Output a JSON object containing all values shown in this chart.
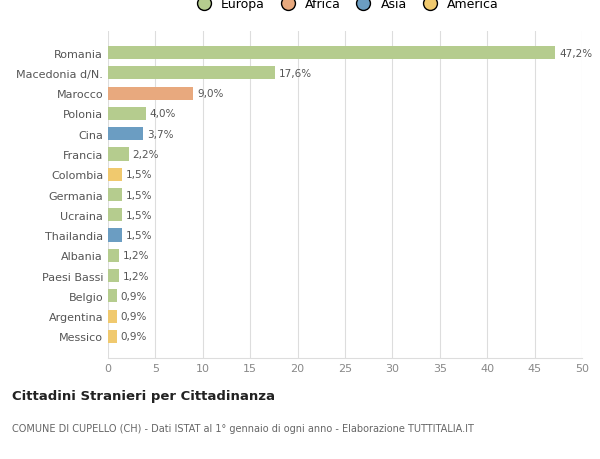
{
  "categories": [
    "Messico",
    "Argentina",
    "Belgio",
    "Paesi Bassi",
    "Albania",
    "Thailandia",
    "Ucraina",
    "Germania",
    "Colombia",
    "Francia",
    "Cina",
    "Polonia",
    "Marocco",
    "Macedonia d/N.",
    "Romania"
  ],
  "values": [
    0.9,
    0.9,
    0.9,
    1.2,
    1.2,
    1.5,
    1.5,
    1.5,
    1.5,
    2.2,
    3.7,
    4.0,
    9.0,
    17.6,
    47.2
  ],
  "labels": [
    "0,9%",
    "0,9%",
    "0,9%",
    "1,2%",
    "1,2%",
    "1,5%",
    "1,5%",
    "1,5%",
    "1,5%",
    "2,2%",
    "3,7%",
    "4,0%",
    "9,0%",
    "17,6%",
    "47,2%"
  ],
  "colors": [
    "#f0c96e",
    "#f0c96e",
    "#b5cc8e",
    "#b5cc8e",
    "#b5cc8e",
    "#6b9dc2",
    "#b5cc8e",
    "#b5cc8e",
    "#f0c96e",
    "#b5cc8e",
    "#6b9dc2",
    "#b5cc8e",
    "#e8a97e",
    "#b5cc8e",
    "#b5cc8e"
  ],
  "legend_labels": [
    "Europa",
    "Africa",
    "Asia",
    "America"
  ],
  "legend_colors": [
    "#b5cc8e",
    "#e8a97e",
    "#6b9dc2",
    "#f0c96e"
  ],
  "title": "Cittadini Stranieri per Cittadinanza",
  "subtitle": "COMUNE DI CUPELLO (CH) - Dati ISTAT al 1° gennaio di ogni anno - Elaborazione TUTTITALIA.IT",
  "xlim": [
    0,
    50
  ],
  "xticks": [
    0,
    5,
    10,
    15,
    20,
    25,
    30,
    35,
    40,
    45,
    50
  ],
  "bg_color": "#ffffff",
  "grid_color": "#dddddd",
  "bar_height": 0.65
}
